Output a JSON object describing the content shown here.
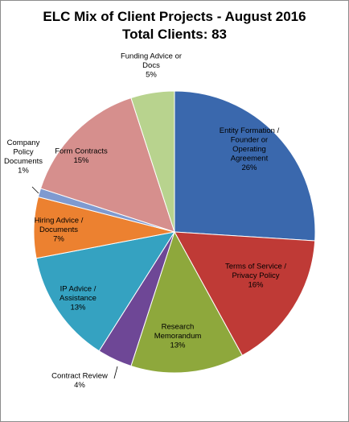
{
  "chart_data": {
    "type": "pie",
    "title": "ELC Mix of Client Projects - August 2016",
    "subtitle": "Total Clients: 83",
    "slices": [
      {
        "label": [
          "Entity Formation /",
          "Founder or",
          "Operating",
          "Agreement"
        ],
        "pct_label": "26%",
        "value": 26,
        "color": "#3a68ad"
      },
      {
        "label": [
          "Terms of Service /",
          "Privacy Policy"
        ],
        "pct_label": "16%",
        "value": 16,
        "color": "#bf3a36"
      },
      {
        "label": [
          "Research",
          "Memorandum"
        ],
        "pct_label": "13%",
        "value": 13,
        "color": "#8ea83c"
      },
      {
        "label": [
          "Contract Review"
        ],
        "pct_label": "4%",
        "value": 4,
        "color": "#6e4796"
      },
      {
        "label": [
          "IP Advice /",
          "Assistance"
        ],
        "pct_label": "13%",
        "value": 13,
        "color": "#35a2c1"
      },
      {
        "label": [
          "Hiring Advice /",
          "Documents"
        ],
        "pct_label": "7%",
        "value": 7,
        "color": "#ec8130"
      },
      {
        "label": [
          "Company",
          "Policy",
          "Documents"
        ],
        "pct_label": "1%",
        "value": 1,
        "color": "#7f9ad0"
      },
      {
        "label": [
          "Form Contracts"
        ],
        "pct_label": "15%",
        "value": 15,
        "color": "#d68f8d"
      },
      {
        "label": [
          "Funding Advice or",
          "Docs"
        ],
        "pct_label": "5%",
        "value": 5,
        "color": "#b8d38e"
      }
    ]
  }
}
